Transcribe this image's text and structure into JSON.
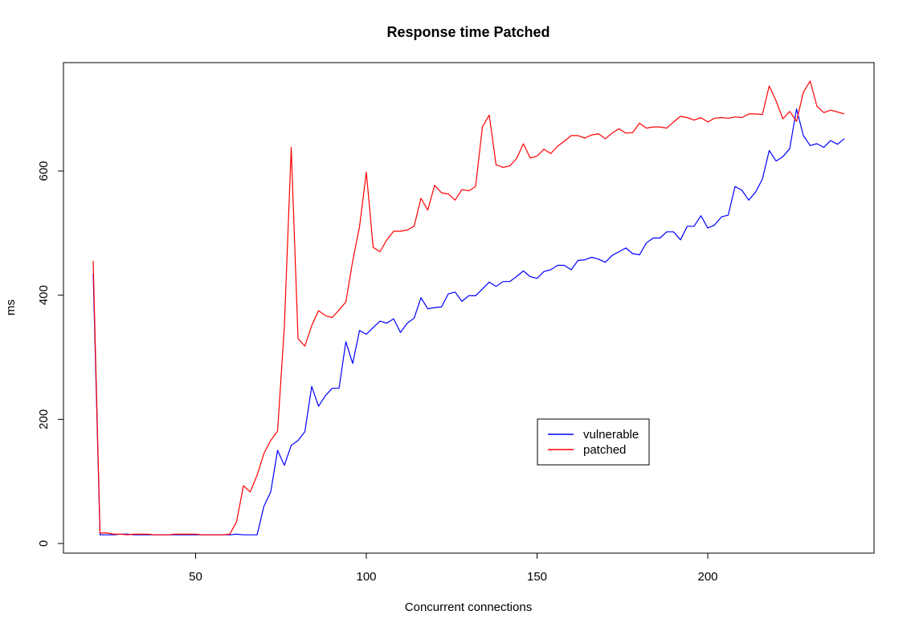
{
  "chart_data": {
    "type": "line",
    "title": "Response time Patched",
    "xlabel": "Concurrent connections",
    "ylabel": "ms",
    "xlim": [
      20,
      240
    ],
    "ylim": [
      0,
      750
    ],
    "x_ticks": [
      50,
      100,
      150,
      200
    ],
    "y_ticks": [
      0,
      200,
      400,
      600
    ],
    "grid": false,
    "legend_position": "bottom-right",
    "x": [
      20,
      22,
      24,
      26,
      28,
      30,
      32,
      34,
      36,
      38,
      40,
      42,
      44,
      46,
      48,
      50,
      52,
      54,
      56,
      58,
      60,
      62,
      64,
      66,
      68,
      70,
      72,
      74,
      76,
      78,
      80,
      82,
      84,
      86,
      88,
      90,
      92,
      94,
      96,
      98,
      100,
      102,
      104,
      106,
      108,
      110,
      112,
      114,
      116,
      118,
      120,
      122,
      124,
      126,
      128,
      130,
      132,
      134,
      136,
      138,
      140,
      142,
      144,
      146,
      148,
      150,
      152,
      154,
      156,
      158,
      160,
      162,
      164,
      166,
      168,
      170,
      172,
      174,
      176,
      178,
      180,
      182,
      184,
      186,
      188,
      190,
      192,
      194,
      196,
      198,
      200,
      202,
      204,
      206,
      208,
      210,
      212,
      214,
      216,
      218,
      220,
      222,
      224,
      226,
      228,
      230,
      232,
      234,
      236,
      238,
      240
    ],
    "series": [
      {
        "name": "vulnerable",
        "color": "#0000ff",
        "values": [
          435,
          14,
          14,
          14,
          15,
          15,
          14,
          14,
          14,
          14,
          14,
          14,
          14,
          14,
          14,
          14,
          14,
          14,
          14,
          14,
          14,
          15,
          14,
          14,
          14,
          60,
          83,
          150,
          126,
          158,
          166,
          180,
          253,
          221,
          238,
          250,
          250,
          325,
          290,
          343,
          337,
          348,
          358,
          355,
          362,
          340,
          355,
          363,
          396,
          378,
          380,
          381,
          402,
          405,
          390,
          399,
          399,
          410,
          421,
          414,
          422,
          422,
          430,
          439,
          430,
          427,
          438,
          441,
          448,
          448,
          441,
          456,
          457,
          461,
          458,
          453,
          464,
          470,
          476,
          467,
          465,
          484,
          492,
          492,
          502,
          502,
          489,
          511,
          511,
          528,
          508,
          513,
          526,
          529,
          575,
          569,
          553,
          566,
          587,
          633,
          616,
          623,
          636,
          700,
          657,
          641,
          644,
          638,
          649,
          643,
          652
        ]
      },
      {
        "name": "patched",
        "color": "#ff0000",
        "values": [
          455,
          17,
          17,
          15,
          15,
          14,
          15,
          15,
          15,
          14,
          14,
          14,
          15,
          15,
          15,
          15,
          14,
          14,
          14,
          14,
          15,
          35,
          93,
          83,
          110,
          145,
          166,
          181,
          350,
          638,
          330,
          318,
          351,
          375,
          367,
          364,
          376,
          389,
          455,
          510,
          598,
          477,
          470,
          489,
          503,
          503,
          505,
          511,
          556,
          537,
          577,
          565,
          563,
          553,
          570,
          568,
          575,
          671,
          690,
          610,
          606,
          608,
          620,
          644,
          621,
          624,
          635,
          628,
          640,
          648,
          657,
          657,
          653,
          658,
          660,
          652,
          661,
          668,
          661,
          662,
          677,
          669,
          671,
          671,
          669,
          679,
          688,
          686,
          682,
          686,
          679,
          685,
          686,
          685,
          687,
          686,
          692,
          692,
          691,
          737,
          713,
          684,
          696,
          680,
          727,
          745,
          704,
          694,
          698,
          695,
          692
        ]
      }
    ]
  }
}
